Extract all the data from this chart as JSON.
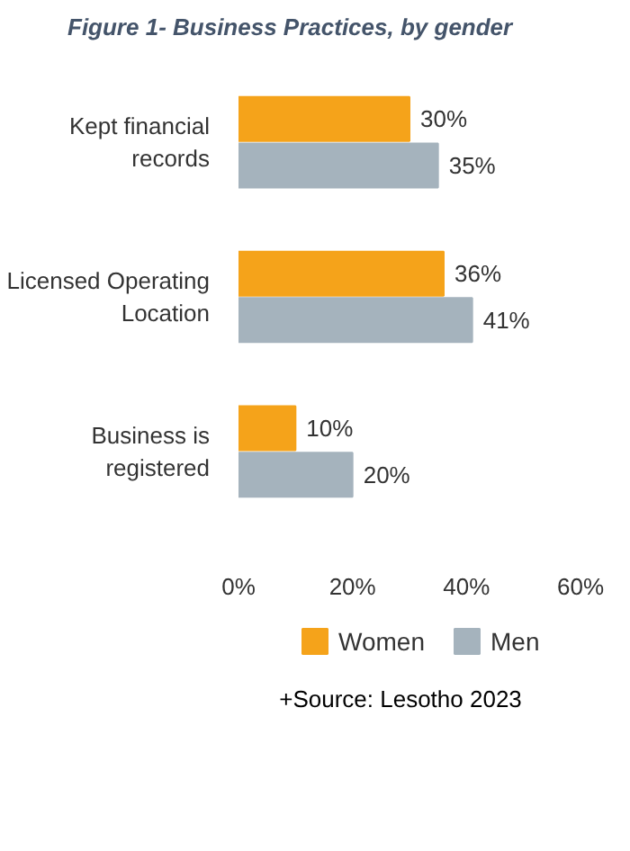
{
  "chart_data": {
    "type": "bar",
    "orientation": "horizontal",
    "title": "Figure 1- Business Practices, by gender",
    "categories": [
      "Kept financial records",
      "Licensed Operating Location",
      "Business is registered"
    ],
    "series": [
      {
        "name": "Women",
        "color": "#f5a31a",
        "values": [
          30,
          36,
          10
        ],
        "value_labels": [
          "30%",
          "36%",
          "10%"
        ]
      },
      {
        "name": "Men",
        "color": "#a5b3bd",
        "values": [
          35,
          41,
          20
        ],
        "value_labels": [
          "35%",
          "41%",
          "20%"
        ]
      }
    ],
    "xlim": [
      0,
      60
    ],
    "xticks": [
      {
        "value": 0,
        "label": "0%"
      },
      {
        "value": 20,
        "label": "20%"
      },
      {
        "value": 40,
        "label": "40%"
      },
      {
        "value": 60,
        "label": "60%"
      }
    ],
    "grid": false,
    "legend": "bottom",
    "annotations": [
      "+Source: Lesotho 2023"
    ]
  }
}
